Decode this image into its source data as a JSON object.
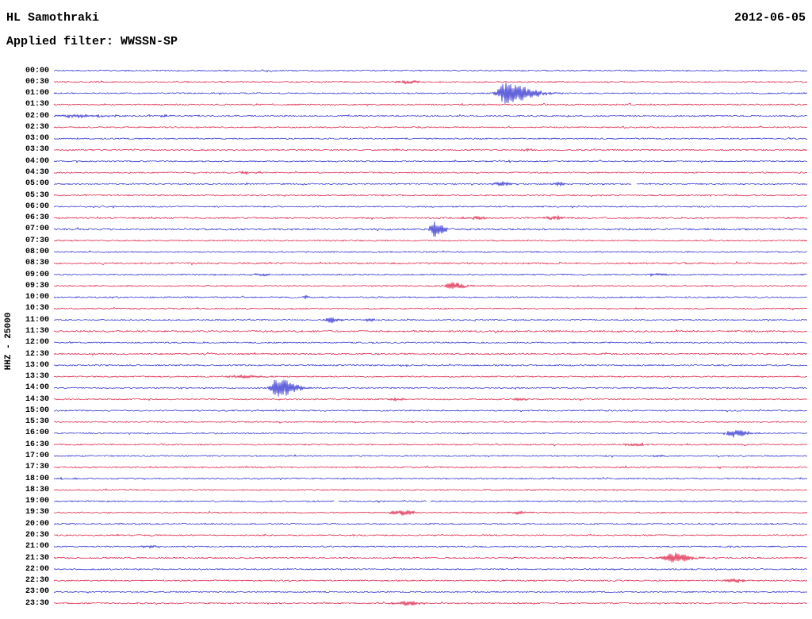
{
  "header": {
    "station": "HL Samothraki",
    "date": "2012-06-05",
    "filter_label": "Applied filter: WWSSN-SP"
  },
  "axis": {
    "channel_label": "HHZ - 25000"
  },
  "colors": {
    "even_trace": "#2222cc",
    "odd_trace": "#dc143c",
    "background": "#ffffff",
    "text": "#000000"
  },
  "chart_data": {
    "type": "line",
    "title": "HL Samothraki helicorder",
    "subtitle": "Applied filter: WWSSN-SP",
    "date": "2012-06-05",
    "minutes_per_row": 30,
    "row_labels": [
      "00:00",
      "00:30",
      "01:00",
      "01:30",
      "02:00",
      "02:30",
      "03:00",
      "03:30",
      "04:00",
      "04:30",
      "05:00",
      "05:30",
      "06:00",
      "06:30",
      "07:00",
      "07:30",
      "08:00",
      "08:30",
      "09:00",
      "09:30",
      "10:00",
      "10:30",
      "11:00",
      "11:30",
      "12:00",
      "12:30",
      "13:00",
      "13:30",
      "14:00",
      "14:30",
      "15:00",
      "15:30",
      "16:00",
      "16:30",
      "17:00",
      "17:30",
      "18:00",
      "18:30",
      "19:00",
      "19:30",
      "20:00",
      "20:30",
      "21:00",
      "21:30",
      "22:00",
      "22:30",
      "23:00",
      "23:30"
    ],
    "noise_default": 0.8,
    "noise_overrides": {
      "02:00": 0.9,
      "06:30": 0.9,
      "07:00": 1.1,
      "08:30": 1.0,
      "11:30": 1.0,
      "12:30": 0.9,
      "13:00": 0.9,
      "17:30": 0.9
    },
    "events": [
      {
        "time": "00:30",
        "pos": 0.47,
        "amp": 2.2,
        "width": 10
      },
      {
        "time": "01:00",
        "pos": 0.599,
        "amp": 13,
        "width": 7,
        "decay": 26
      },
      {
        "time": "02:00",
        "pos": 0.034,
        "amp": 2.0,
        "width": 28
      },
      {
        "time": "02:00",
        "pos": 0.145,
        "amp": 1.6,
        "width": 6
      },
      {
        "time": "03:30",
        "pos": 0.455,
        "amp": 1.2,
        "width": 6
      },
      {
        "time": "03:30",
        "pos": 0.63,
        "amp": 1.4,
        "width": 5
      },
      {
        "time": "04:30",
        "pos": 0.253,
        "amp": 2.4,
        "width": 3
      },
      {
        "time": "04:30",
        "pos": 0.272,
        "amp": 2.0,
        "width": 3
      },
      {
        "time": "05:00",
        "pos": 0.594,
        "amp": 3.2,
        "width": 7,
        "decay": 12
      },
      {
        "time": "05:00",
        "pos": 0.672,
        "amp": 2.8,
        "width": 6
      },
      {
        "time": "06:30",
        "pos": 0.56,
        "amp": 1.6,
        "width": 14
      },
      {
        "time": "06:30",
        "pos": 0.665,
        "amp": 3.0,
        "width": 9
      },
      {
        "time": "07:00",
        "pos": 0.503,
        "amp": 10,
        "width": 2.5,
        "decay": 10
      },
      {
        "time": "09:00",
        "pos": 0.276,
        "amp": 1.6,
        "width": 8
      },
      {
        "time": "09:00",
        "pos": 0.802,
        "amp": 1.4,
        "width": 8
      },
      {
        "time": "09:30",
        "pos": 0.528,
        "amp": 4.5,
        "width": 6,
        "decay": 12
      },
      {
        "time": "10:00",
        "pos": 0.334,
        "amp": 2.4,
        "width": 3
      },
      {
        "time": "11:00",
        "pos": 0.365,
        "amp": 4.0,
        "width": 4,
        "decay": 10
      },
      {
        "time": "11:00",
        "pos": 0.418,
        "amp": 2.4,
        "width": 5
      },
      {
        "time": "13:30",
        "pos": 0.255,
        "amp": 1.8,
        "width": 18
      },
      {
        "time": "14:00",
        "pos": 0.297,
        "amp": 12,
        "width": 6,
        "decay": 18
      },
      {
        "time": "14:30",
        "pos": 0.455,
        "amp": 1.5,
        "width": 9
      },
      {
        "time": "14:30",
        "pos": 0.62,
        "amp": 1.8,
        "width": 6
      },
      {
        "time": "16:00",
        "pos": 0.902,
        "amp": 5.0,
        "width": 7,
        "decay": 14
      },
      {
        "time": "16:30",
        "pos": 0.77,
        "amp": 1.8,
        "width": 9
      },
      {
        "time": "17:00",
        "pos": 0.8,
        "amp": 1.6,
        "width": 6
      },
      {
        "time": "18:00",
        "pos": 0.028,
        "amp": 1.6,
        "width": 2
      },
      {
        "time": "18:00",
        "pos": 0.213,
        "amp": 1.4,
        "width": 2
      },
      {
        "time": "19:30",
        "pos": 0.465,
        "amp": 3.4,
        "width": 11
      },
      {
        "time": "19:30",
        "pos": 0.618,
        "amp": 2.0,
        "width": 9
      },
      {
        "time": "21:00",
        "pos": 0.128,
        "amp": 1.8,
        "width": 9
      },
      {
        "time": "21:30",
        "pos": 0.823,
        "amp": 6.5,
        "width": 10,
        "decay": 16
      },
      {
        "time": "22:30",
        "pos": 0.907,
        "amp": 2.4,
        "width": 11
      },
      {
        "time": "23:30",
        "pos": 0.47,
        "amp": 3.0,
        "width": 13
      }
    ],
    "gaps": [
      {
        "time": "05:00",
        "pos": 0.77,
        "width": 6
      },
      {
        "time": "19:00",
        "pos": 0.375,
        "width": 5
      },
      {
        "time": "19:00",
        "pos": 0.497,
        "width": 4
      }
    ]
  }
}
